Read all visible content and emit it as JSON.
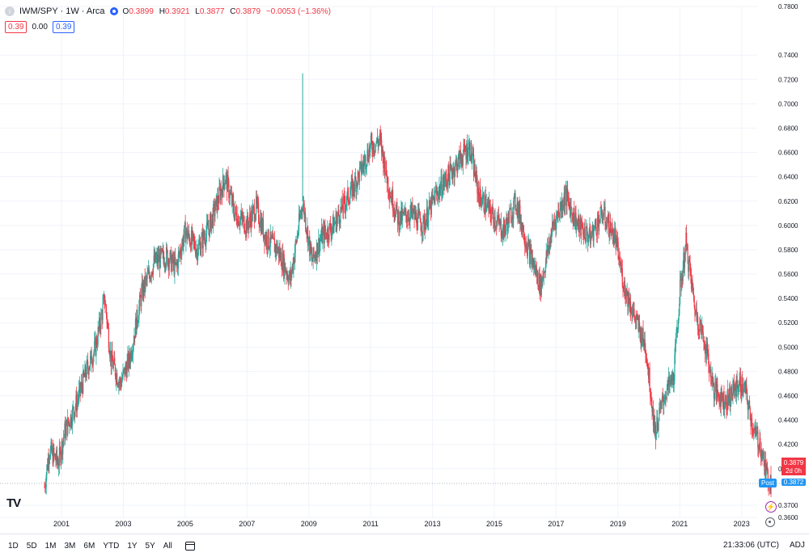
{
  "header": {
    "symbol_icon": "circle-icon",
    "title": "IWM/SPY · 1W · Arca",
    "ohlc": {
      "o_label": "O",
      "o": "0.3899",
      "h_label": "H",
      "h": "0.3921",
      "l_label": "L",
      "l": "0.3877",
      "c_label": "C",
      "c": "0.3879",
      "change": "−0.0053 (−1.36%)"
    },
    "row2": {
      "left": "0.39",
      "mid": "0.00",
      "right": "0.39"
    }
  },
  "price_labels": {
    "last": "0.3879",
    "countdown": "2d 0h",
    "post_tag": "Post",
    "post": "0.3872"
  },
  "colors": {
    "up": "#26a69a",
    "down": "#f23645",
    "grid": "#f0f3fa",
    "axis_text": "#131722",
    "post": "#2196f3"
  },
  "bottom_bar": {
    "ranges": [
      "1D",
      "5D",
      "1M",
      "3M",
      "6M",
      "YTD",
      "1Y",
      "5Y",
      "All"
    ],
    "calendar_icon": "calendar-icon",
    "time": "21:33:06 (UTC)",
    "adj": "ADJ"
  },
  "logo_text": "TV",
  "chart_data": {
    "type": "candlestick",
    "title": "IWM/SPY · 1W · Arca",
    "x_ticks": [
      "2001",
      "2003",
      "2005",
      "2007",
      "2009",
      "2011",
      "2013",
      "2015",
      "2017",
      "2019",
      "2021",
      "2023"
    ],
    "x_range": [
      2000.45,
      2023.95
    ],
    "y_ticks": [
      "0.7800",
      "0.7400",
      "0.7200",
      "0.7000",
      "0.6800",
      "0.6600",
      "0.6400",
      "0.6200",
      "0.6000",
      "0.5800",
      "0.5600",
      "0.5400",
      "0.5200",
      "0.5000",
      "0.4800",
      "0.4600",
      "0.4400",
      "0.4200",
      "0.4000",
      "0.3700",
      "0.3600"
    ],
    "ylim": [
      0.36,
      0.78
    ],
    "last_price": 0.3879,
    "trend": {
      "x": [
        2000.45,
        2000.6,
        2000.9,
        2001.1,
        2001.5,
        2001.8,
        2002.1,
        2002.4,
        2002.6,
        2002.9,
        2003.2,
        2003.6,
        2004.0,
        2004.4,
        2004.7,
        2005.0,
        2005.4,
        2005.8,
        2006.3,
        2006.6,
        2007.0,
        2007.3,
        2007.6,
        2008.0,
        2008.4,
        2008.8,
        2009.1,
        2009.4,
        2009.8,
        2010.2,
        2010.6,
        2011.0,
        2011.3,
        2011.6,
        2011.9,
        2012.3,
        2012.7,
        2013.1,
        2013.5,
        2013.9,
        2014.2,
        2014.5,
        2014.9,
        2015.3,
        2015.7,
        2016.1,
        2016.5,
        2016.9,
        2017.3,
        2017.7,
        2018.1,
        2018.5,
        2018.9,
        2019.2,
        2019.6,
        2019.9,
        2020.2,
        2020.5,
        2020.8,
        2021.0,
        2021.2,
        2021.5,
        2021.8,
        2022.1,
        2022.5,
        2022.9,
        2023.1,
        2023.4,
        2023.6,
        2023.8,
        2023.95
      ],
      "y": [
        0.385,
        0.415,
        0.405,
        0.43,
        0.455,
        0.48,
        0.5,
        0.54,
        0.49,
        0.47,
        0.49,
        0.545,
        0.57,
        0.575,
        0.565,
        0.595,
        0.58,
        0.6,
        0.64,
        0.61,
        0.6,
        0.615,
        0.59,
        0.58,
        0.555,
        0.62,
        0.57,
        0.59,
        0.6,
        0.62,
        0.64,
        0.665,
        0.67,
        0.63,
        0.605,
        0.61,
        0.6,
        0.625,
        0.64,
        0.655,
        0.665,
        0.625,
        0.61,
        0.595,
        0.62,
        0.58,
        0.55,
        0.6,
        0.625,
        0.6,
        0.59,
        0.61,
        0.59,
        0.55,
        0.52,
        0.5,
        0.43,
        0.46,
        0.475,
        0.545,
        0.585,
        0.53,
        0.505,
        0.465,
        0.455,
        0.47,
        0.465,
        0.43,
        0.42,
        0.395,
        0.388
      ]
    },
    "spike": {
      "x": 2008.8,
      "high": 0.725
    }
  }
}
